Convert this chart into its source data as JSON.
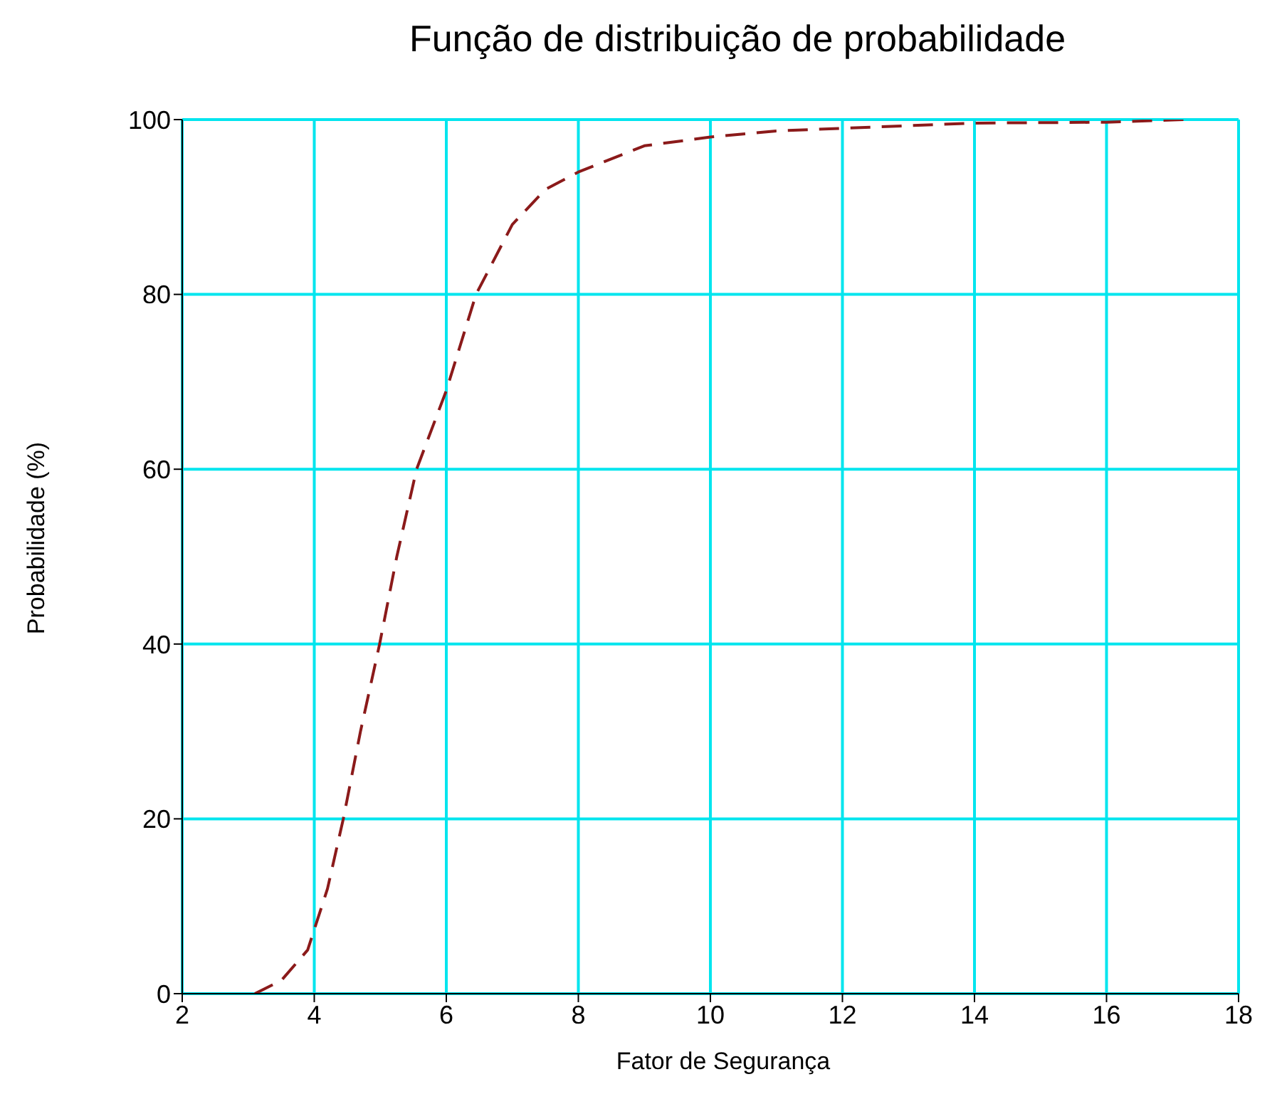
{
  "chart_data": {
    "type": "line",
    "title": "Função de distribuição de probabilidade",
    "xlabel": "Fator de Segurança",
    "ylabel": "Probabilidade (%)",
    "x": [
      3.1,
      3.5,
      3.9,
      4.2,
      4.44,
      4.7,
      4.99,
      5.25,
      5.55,
      6,
      6.45,
      7,
      7.5,
      8,
      9,
      10,
      11,
      12,
      13,
      14,
      16,
      17.2
    ],
    "series": [
      {
        "color": "#8b1a1a",
        "values": [
          0,
          1.5,
          5,
          12,
          20,
          30,
          40,
          50,
          60,
          69,
          80,
          88,
          92,
          94,
          97,
          98,
          98.7,
          99,
          99.3,
          99.6,
          99.7,
          100
        ]
      }
    ],
    "xlim": [
      2,
      18
    ],
    "xticks": [
      2,
      4,
      6,
      8,
      10,
      12,
      14,
      16,
      18
    ],
    "ylim": [
      0,
      100
    ],
    "yticks": [
      0,
      20,
      40,
      60,
      80,
      100
    ],
    "grid": true,
    "line_style": "dashed",
    "marker": "none"
  }
}
